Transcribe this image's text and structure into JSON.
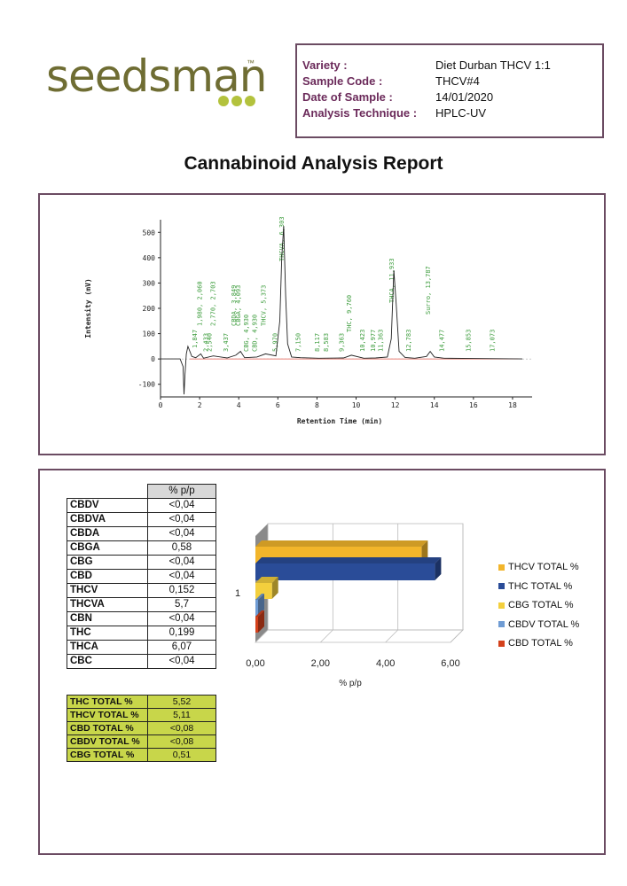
{
  "brand": {
    "name": "seedsman",
    "tm": "™"
  },
  "sample_info": [
    {
      "key": "Variety :",
      "value": "Diet Durban THCV 1:1"
    },
    {
      "key": "Sample Code :",
      "value": "THCV#4"
    },
    {
      "key": "Date of Sample :",
      "value": "14/01/2020"
    },
    {
      "key": "Analysis Technique :",
      "value": "HPLC-UV"
    }
  ],
  "title": "Cannabinoid Analysis Report",
  "chromatogram": {
    "ylabel": "Intensity (mV)",
    "xlabel": "Retention Time (min)",
    "y_ticks": [
      "500",
      "400",
      "300",
      "200",
      "100",
      "0",
      "-100"
    ],
    "x_ticks": [
      "0",
      "2",
      "4",
      "6",
      "8",
      "10",
      "12",
      "14",
      "16",
      "18"
    ],
    "peak_labels": [
      "1,847",
      "1,980, 2,060",
      "2,433",
      "2,540",
      "2,770, 2,703",
      "3,437",
      "CBDA, 3,849",
      "CBGA, 4,093",
      "CBG, 4,930",
      "CBD, 4,930",
      "THCV, 5,373",
      "5,970",
      "THCVA, 6,303",
      "7,150",
      "8,117",
      "8,583",
      "9,363",
      "THC, 9,760",
      "10,423",
      "10,977",
      "11,363",
      "THCA, 11,933",
      "12,783",
      "Surro, 13,787",
      "14,477",
      "15,853",
      "17,073"
    ]
  },
  "cannabinoids_header": "% p/p",
  "cannabinoids": [
    {
      "name": "CBDV",
      "value": "<0,04"
    },
    {
      "name": "CBDVA",
      "value": "<0,04"
    },
    {
      "name": "CBDA",
      "value": "<0,04"
    },
    {
      "name": "CBGA",
      "value": "0,58"
    },
    {
      "name": "CBG",
      "value": "<0,04"
    },
    {
      "name": "CBD",
      "value": "<0,04"
    },
    {
      "name": "THCV",
      "value": "0,152"
    },
    {
      "name": "THCVA",
      "value": "5,7"
    },
    {
      "name": "CBN",
      "value": "<0,04"
    },
    {
      "name": "THC",
      "value": "0,199"
    },
    {
      "name": "THCA",
      "value": "6,07"
    },
    {
      "name": "CBC",
      "value": "<0,04"
    }
  ],
  "totals": [
    {
      "name": "THC TOTAL %",
      "value": "5,52"
    },
    {
      "name": "THCV TOTAL %",
      "value": "5,11"
    },
    {
      "name": "CBD TOTAL %",
      "value": "<0,08"
    },
    {
      "name": "CBDV TOTAL %",
      "value": "<0,08"
    },
    {
      "name": "CBG TOTAL %",
      "value": "0,51"
    }
  ],
  "chart_data": [
    {
      "type": "line",
      "xlabel": "Retention Time (min)",
      "ylabel": "Intensity (mV)",
      "xlim": [
        0,
        19
      ],
      "ylim": [
        -150,
        550
      ],
      "series": [
        {
          "x": [
            0,
            1.0,
            1.15,
            1.2,
            1.25,
            1.32,
            1.4,
            1.5,
            1.6,
            1.8,
            2.06,
            2.2,
            2.7,
            3.4,
            3.85,
            4.09,
            4.3,
            4.93,
            5.37,
            5.9,
            6.1,
            6.2,
            6.3,
            6.4,
            6.5,
            6.7,
            7.15,
            8.1,
            9.36,
            9.76,
            10.4,
            11.0,
            11.6,
            11.8,
            11.93,
            12.05,
            12.2,
            12.5,
            13.0,
            13.6,
            13.79,
            14.0,
            14.5,
            16.0,
            18.5
          ],
          "y": [
            0,
            0,
            -30,
            -140,
            -60,
            20,
            50,
            30,
            10,
            5,
            20,
            3,
            12,
            4,
            15,
            30,
            5,
            8,
            20,
            12,
            150,
            400,
            525,
            250,
            60,
            8,
            5,
            3,
            4,
            15,
            3,
            4,
            8,
            80,
            350,
            220,
            30,
            6,
            3,
            10,
            30,
            8,
            3,
            2,
            0
          ]
        }
      ]
    },
    {
      "type": "bar",
      "orientation": "horizontal",
      "categories": [
        "1"
      ],
      "series": [
        {
          "name": "THCV TOTAL %",
          "values": [
            5.11
          ],
          "color": "#f2b52b"
        },
        {
          "name": "THC TOTAL %",
          "values": [
            5.52
          ],
          "color": "#2a4c98"
        },
        {
          "name": "CBG TOTAL %",
          "values": [
            0.51
          ],
          "color": "#f3cf3d"
        },
        {
          "name": "CBDV TOTAL %",
          "values": [
            0.02
          ],
          "color": "#6f9cd4"
        },
        {
          "name": "CBD TOTAL %",
          "values": [
            0.02
          ],
          "color": "#d4411b"
        }
      ],
      "xlabel": "% p/p",
      "x_ticks": [
        "0,00",
        "2,00",
        "4,00",
        "6,00"
      ],
      "xlim": [
        0,
        6
      ],
      "legend_position": "right"
    }
  ]
}
